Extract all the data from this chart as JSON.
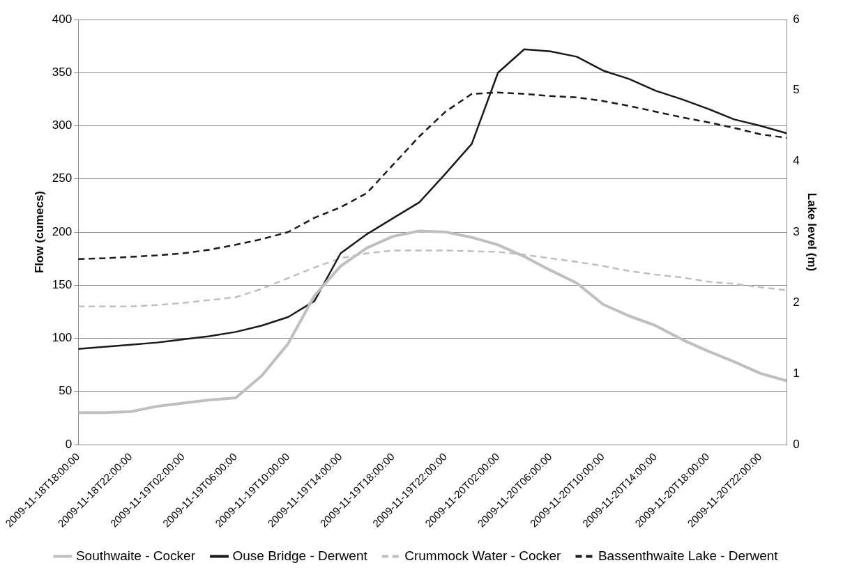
{
  "chart_data": {
    "type": "line",
    "ylabel": "Flow (cumecs)",
    "y2label": "Lake level (m)",
    "x": [
      "2009-11-18T18:00",
      "2009-11-18T20:00",
      "2009-11-18T22:00",
      "2009-11-19T00:00",
      "2009-11-19T02:00",
      "2009-11-19T04:00",
      "2009-11-19T06:00",
      "2009-11-19T08:00",
      "2009-11-19T10:00",
      "2009-11-19T12:00",
      "2009-11-19T14:00",
      "2009-11-19T16:00",
      "2009-11-19T18:00",
      "2009-11-19T20:00",
      "2009-11-19T22:00",
      "2009-11-20T00:00",
      "2009-11-20T02:00",
      "2009-11-20T04:00",
      "2009-11-20T06:00",
      "2009-11-20T08:00",
      "2009-11-20T10:00",
      "2009-11-20T12:00",
      "2009-11-20T14:00",
      "2009-11-20T16:00",
      "2009-11-20T18:00",
      "2009-11-20T20:00",
      "2009-11-20T22:00",
      "2009-11-21T00:00"
    ],
    "series": [
      {
        "name": "Southwaite - Cocker",
        "color": "#bfbfbf",
        "line_style": "solid",
        "values": [
          30,
          30,
          31,
          36,
          39,
          42,
          44,
          65,
          95,
          140,
          168,
          185,
          196,
          201,
          200,
          195,
          188,
          177,
          164,
          152,
          132,
          121,
          112,
          99,
          88,
          78,
          67,
          60
        ]
      },
      {
        "name": "Ouse Bridge - Derwent",
        "color": "#1a1a1a",
        "line_style": "solid",
        "values": [
          90,
          92,
          94,
          96,
          99,
          102,
          106,
          112,
          120,
          135,
          180,
          198,
          213,
          228,
          255,
          283,
          350,
          372,
          370,
          365,
          352,
          344,
          333,
          325,
          316,
          306,
          300,
          293
        ]
      },
      {
        "name": "Crummock Water - Cocker",
        "color": "#bfbfbf",
        "line_style": "dashed",
        "axis": "y2",
        "values": [
          1.95,
          1.95,
          1.95,
          1.97,
          2.0,
          2.04,
          2.08,
          2.2,
          2.35,
          2.5,
          2.63,
          2.7,
          2.74,
          2.74,
          2.74,
          2.73,
          2.72,
          2.68,
          2.63,
          2.58,
          2.52,
          2.45,
          2.4,
          2.36,
          2.3,
          2.27,
          2.22,
          2.18
        ]
      },
      {
        "name": "Bassenthwaite Lake - Derwent",
        "color": "#1a1a1a",
        "line_style": "dashed",
        "axis": "y2",
        "values": [
          2.62,
          2.63,
          2.65,
          2.67,
          2.7,
          2.75,
          2.82,
          2.9,
          3.0,
          3.2,
          3.35,
          3.55,
          3.95,
          4.35,
          4.7,
          4.95,
          4.97,
          4.95,
          4.92,
          4.9,
          4.85,
          4.78,
          4.7,
          4.62,
          4.55,
          4.47,
          4.38,
          4.33
        ]
      }
    ],
    "xlim": [
      "2009-11-18T18:00",
      "2009-11-21T00:00"
    ],
    "xticks": [
      {
        "value": "2009-11-18T18:00",
        "label": "2009-11-18T18:00:00"
      },
      {
        "value": "2009-11-18T22:00",
        "label": "2009-11-18T22:00:00"
      },
      {
        "value": "2009-11-19T02:00",
        "label": "2009-11-19T02:00:00"
      },
      {
        "value": "2009-11-19T06:00",
        "label": "2009-11-19T06:00:00"
      },
      {
        "value": "2009-11-19T10:00",
        "label": "2009-11-19T10:00:00"
      },
      {
        "value": "2009-11-19T14:00",
        "label": "2009-11-19T14:00:00"
      },
      {
        "value": "2009-11-19T18:00",
        "label": "2009-11-19T18:00:00"
      },
      {
        "value": "2009-11-19T22:00",
        "label": "2009-11-19T22:00:00"
      },
      {
        "value": "2009-11-20T02:00",
        "label": "2009-11-20T02:00:00"
      },
      {
        "value": "2009-11-20T06:00",
        "label": "2009-11-20T06:00:00"
      },
      {
        "value": "2009-11-20T10:00",
        "label": "2009-11-20T10:00:00"
      },
      {
        "value": "2009-11-20T14:00",
        "label": "2009-11-20T14:00:00"
      },
      {
        "value": "2009-11-20T18:00",
        "label": "2009-11-20T18:00:00"
      },
      {
        "value": "2009-11-20T22:00",
        "label": "2009-11-20T22:00:00"
      }
    ],
    "ylim": [
      0,
      400
    ],
    "yticks": [
      0,
      50,
      100,
      150,
      200,
      250,
      300,
      350,
      400
    ],
    "y2lim": [
      0,
      6
    ],
    "y2ticks": [
      0,
      1,
      2,
      3,
      4,
      5,
      6
    ],
    "grid": "y",
    "legend": "bottom",
    "marker": "none"
  }
}
